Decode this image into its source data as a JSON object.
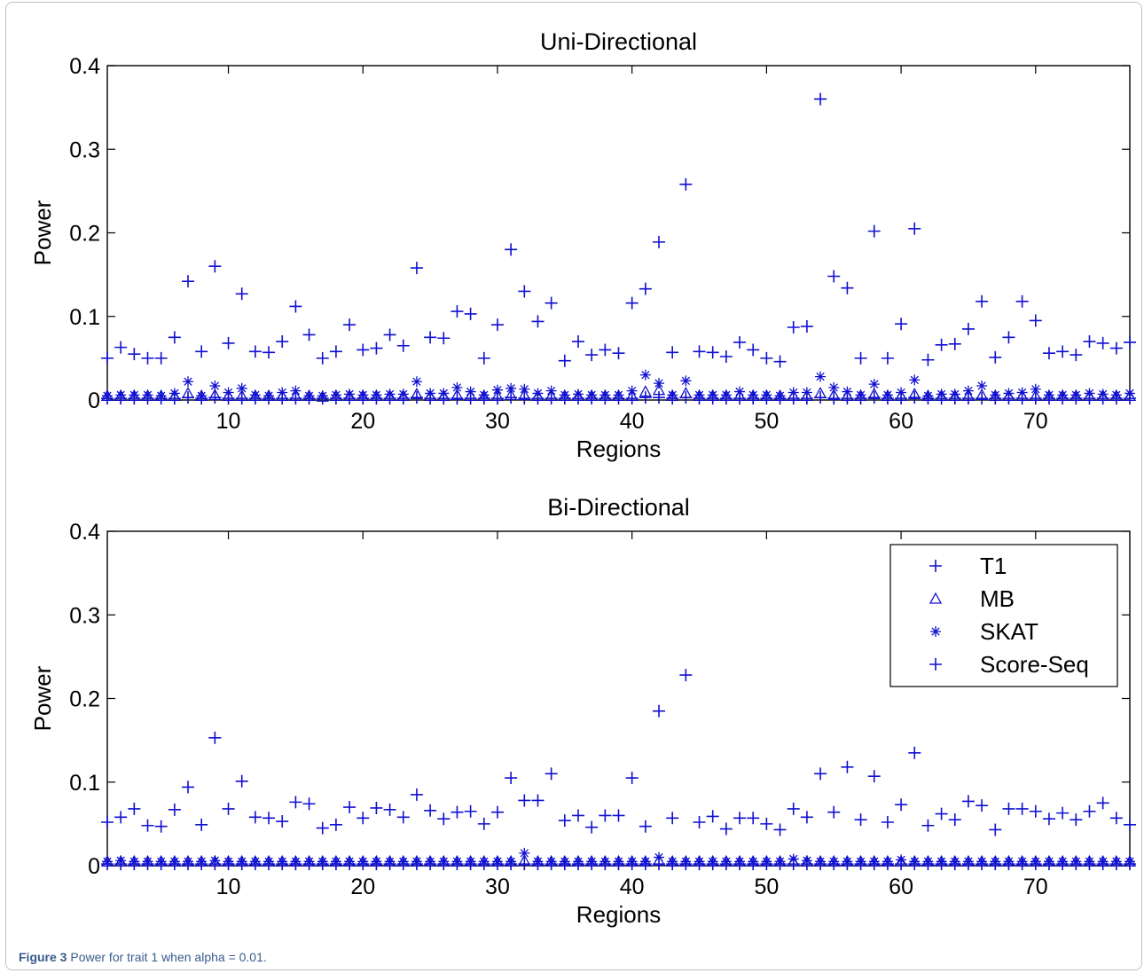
{
  "figure": {
    "caption_label": "Figure 3",
    "caption_text": "Power for trait 1 when alpha = 0.01."
  },
  "chart_data": [
    {
      "type": "scatter",
      "title": "Uni-Directional",
      "xlabel": "Regions",
      "ylabel": "Power",
      "xlim": [
        1,
        77
      ],
      "ylim": [
        0,
        0.4
      ],
      "xticks": [
        10,
        20,
        30,
        40,
        50,
        60,
        70
      ],
      "yticks": [
        0,
        0.1,
        0.2,
        0.3,
        0.4
      ],
      "ytick_labels": [
        "0",
        "0.1",
        "0.2",
        "0.3",
        "0.4"
      ],
      "legend": "none",
      "grid": false,
      "color": "#1010d0",
      "series": [
        {
          "marker": "plus",
          "values": [
            0.05,
            0.063,
            0.055,
            0.05,
            0.05,
            0.075,
            0.142,
            0.058,
            0.16,
            0.068,
            0.127,
            0.058,
            0.057,
            0.07,
            0.112,
            0.078,
            0.05,
            0.058,
            0.09,
            0.06,
            0.062,
            0.078,
            0.065,
            0.158,
            0.075,
            0.074,
            0.106,
            0.103,
            0.05,
            0.09,
            0.18,
            0.13,
            0.094,
            0.116,
            0.047,
            0.07,
            0.054,
            0.06,
            0.056,
            0.116,
            0.133,
            0.189,
            0.057,
            0.258,
            0.058,
            0.057,
            0.052,
            0.069,
            0.06,
            0.05,
            0.046,
            0.087,
            0.088,
            0.36,
            0.148,
            0.134,
            0.05,
            0.202,
            0.05,
            0.091,
            0.205,
            0.048,
            0.066,
            0.067,
            0.085,
            0.118,
            0.051,
            0.075,
            0.118,
            0.095,
            0.056,
            0.058,
            0.054,
            0.07,
            0.068,
            0.062,
            0.069
          ]
        },
        {
          "marker": "triangle",
          "values": [
            0.005,
            0.005,
            0.005,
            0.005,
            0.005,
            0.005,
            0.008,
            0.005,
            0.006,
            0.005,
            0.005,
            0.005,
            0.005,
            0.005,
            0.005,
            0.005,
            0.004,
            0.005,
            0.005,
            0.005,
            0.005,
            0.005,
            0.005,
            0.007,
            0.005,
            0.005,
            0.006,
            0.005,
            0.005,
            0.005,
            0.006,
            0.006,
            0.005,
            0.005,
            0.005,
            0.005,
            0.005,
            0.005,
            0.005,
            0.005,
            0.01,
            0.012,
            0.005,
            0.008,
            0.005,
            0.005,
            0.005,
            0.005,
            0.005,
            0.005,
            0.005,
            0.005,
            0.005,
            0.008,
            0.006,
            0.005,
            0.005,
            0.007,
            0.005,
            0.005,
            0.007,
            0.005,
            0.005,
            0.005,
            0.005,
            0.006,
            0.005,
            0.005,
            0.005,
            0.005,
            0.005,
            0.005,
            0.005,
            0.005,
            0.005,
            0.005,
            0.005
          ]
        },
        {
          "marker": "star",
          "values": [
            0.005,
            0.006,
            0.006,
            0.006,
            0.005,
            0.008,
            0.022,
            0.005,
            0.017,
            0.009,
            0.014,
            0.006,
            0.005,
            0.009,
            0.011,
            0.005,
            0.005,
            0.006,
            0.007,
            0.006,
            0.006,
            0.007,
            0.007,
            0.022,
            0.008,
            0.008,
            0.015,
            0.01,
            0.006,
            0.012,
            0.014,
            0.013,
            0.008,
            0.011,
            0.006,
            0.007,
            0.006,
            0.006,
            0.006,
            0.011,
            0.03,
            0.02,
            0.006,
            0.023,
            0.006,
            0.006,
            0.006,
            0.01,
            0.006,
            0.006,
            0.005,
            0.009,
            0.009,
            0.028,
            0.015,
            0.01,
            0.006,
            0.019,
            0.006,
            0.009,
            0.024,
            0.005,
            0.007,
            0.007,
            0.011,
            0.017,
            0.006,
            0.008,
            0.009,
            0.013,
            0.006,
            0.006,
            0.006,
            0.008,
            0.007,
            0.006,
            0.008
          ]
        },
        {
          "marker": "plus",
          "values": [
            0.002,
            0.002,
            0.002,
            0.002,
            0.002,
            0.002,
            0.003,
            0.002,
            0.003,
            0.002,
            0.002,
            0.002,
            0.002,
            0.002,
            0.002,
            0.002,
            0.002,
            0.002,
            0.002,
            0.002,
            0.002,
            0.002,
            0.002,
            0.003,
            0.002,
            0.002,
            0.002,
            0.002,
            0.002,
            0.002,
            0.003,
            0.002,
            0.002,
            0.002,
            0.002,
            0.002,
            0.002,
            0.002,
            0.002,
            0.002,
            0.003,
            0.003,
            0.002,
            0.003,
            0.002,
            0.002,
            0.002,
            0.002,
            0.002,
            0.002,
            0.002,
            0.002,
            0.002,
            0.003,
            0.002,
            0.002,
            0.002,
            0.003,
            0.002,
            0.002,
            0.003,
            0.002,
            0.002,
            0.002,
            0.002,
            0.002,
            0.002,
            0.002,
            0.002,
            0.002,
            0.002,
            0.002,
            0.002,
            0.002,
            0.002,
            0.002,
            0.002
          ]
        }
      ]
    },
    {
      "type": "scatter",
      "title": "Bi-Directional",
      "xlabel": "Regions",
      "ylabel": "Power",
      "xlim": [
        1,
        77
      ],
      "ylim": [
        0,
        0.4
      ],
      "xticks": [
        10,
        20,
        30,
        40,
        50,
        60,
        70
      ],
      "yticks": [
        0,
        0.1,
        0.2,
        0.3,
        0.4
      ],
      "ytick_labels": [
        "0",
        "0.1",
        "0.2",
        "0.3",
        "0.4"
      ],
      "legend": "top-right",
      "grid": false,
      "color": "#1010d0",
      "series": [
        {
          "name": "T1",
          "marker": "plus",
          "values": [
            0.052,
            0.058,
            0.068,
            0.048,
            0.047,
            0.067,
            0.094,
            0.049,
            0.153,
            0.068,
            0.101,
            0.058,
            0.057,
            0.053,
            0.076,
            0.074,
            0.045,
            0.049,
            0.07,
            0.057,
            0.069,
            0.067,
            0.058,
            0.085,
            0.066,
            0.056,
            0.064,
            0.065,
            0.05,
            0.064,
            0.105,
            0.078,
            0.078,
            0.11,
            0.054,
            0.06,
            0.046,
            0.06,
            0.06,
            0.105,
            0.047,
            0.185,
            0.057,
            0.228,
            0.052,
            0.059,
            0.044,
            0.057,
            0.057,
            0.05,
            0.043,
            0.068,
            0.058,
            0.11,
            0.064,
            0.118,
            0.055,
            0.107,
            0.052,
            0.073,
            0.135,
            0.048,
            0.062,
            0.055,
            0.077,
            0.072,
            0.043,
            0.068,
            0.068,
            0.065,
            0.056,
            0.063,
            0.055,
            0.065,
            0.075,
            0.057,
            0.049
          ]
        },
        {
          "name": "MB",
          "marker": "triangle",
          "values": [
            0.005,
            0.005,
            0.005,
            0.005,
            0.005,
            0.005,
            0.005,
            0.005,
            0.005,
            0.005,
            0.005,
            0.005,
            0.005,
            0.005,
            0.005,
            0.005,
            0.005,
            0.005,
            0.005,
            0.005,
            0.005,
            0.005,
            0.005,
            0.005,
            0.005,
            0.005,
            0.005,
            0.005,
            0.005,
            0.005,
            0.005,
            0.006,
            0.005,
            0.005,
            0.005,
            0.005,
            0.005,
            0.005,
            0.005,
            0.005,
            0.005,
            0.006,
            0.005,
            0.005,
            0.005,
            0.005,
            0.005,
            0.005,
            0.005,
            0.005,
            0.005,
            0.005,
            0.005,
            0.005,
            0.005,
            0.005,
            0.005,
            0.005,
            0.005,
            0.005,
            0.005,
            0.005,
            0.005,
            0.005,
            0.005,
            0.005,
            0.005,
            0.005,
            0.005,
            0.005,
            0.005,
            0.005,
            0.005,
            0.005,
            0.005,
            0.005,
            0.005
          ]
        },
        {
          "name": "SKAT",
          "marker": "star",
          "values": [
            0.005,
            0.006,
            0.005,
            0.005,
            0.005,
            0.005,
            0.005,
            0.005,
            0.006,
            0.005,
            0.005,
            0.005,
            0.005,
            0.005,
            0.005,
            0.005,
            0.005,
            0.005,
            0.005,
            0.005,
            0.005,
            0.005,
            0.005,
            0.005,
            0.005,
            0.005,
            0.005,
            0.005,
            0.005,
            0.005,
            0.005,
            0.015,
            0.005,
            0.005,
            0.005,
            0.005,
            0.005,
            0.005,
            0.005,
            0.005,
            0.005,
            0.01,
            0.005,
            0.005,
            0.005,
            0.005,
            0.005,
            0.005,
            0.005,
            0.005,
            0.005,
            0.008,
            0.006,
            0.005,
            0.005,
            0.005,
            0.005,
            0.005,
            0.005,
            0.007,
            0.005,
            0.005,
            0.005,
            0.005,
            0.005,
            0.005,
            0.005,
            0.005,
            0.005,
            0.005,
            0.005,
            0.005,
            0.005,
            0.005,
            0.005,
            0.005,
            0.005
          ]
        },
        {
          "name": "Score-Seq",
          "marker": "plus",
          "values": [
            0.002,
            0.002,
            0.002,
            0.002,
            0.002,
            0.002,
            0.002,
            0.002,
            0.002,
            0.002,
            0.002,
            0.002,
            0.002,
            0.002,
            0.002,
            0.002,
            0.002,
            0.002,
            0.002,
            0.002,
            0.002,
            0.002,
            0.002,
            0.002,
            0.002,
            0.002,
            0.002,
            0.002,
            0.002,
            0.002,
            0.002,
            0.002,
            0.002,
            0.002,
            0.002,
            0.002,
            0.002,
            0.002,
            0.002,
            0.002,
            0.002,
            0.002,
            0.002,
            0.002,
            0.002,
            0.002,
            0.002,
            0.002,
            0.002,
            0.002,
            0.002,
            0.002,
            0.002,
            0.002,
            0.002,
            0.002,
            0.002,
            0.002,
            0.002,
            0.002,
            0.002,
            0.002,
            0.002,
            0.002,
            0.002,
            0.002,
            0.002,
            0.002,
            0.002,
            0.002,
            0.002,
            0.002,
            0.002,
            0.002,
            0.002,
            0.002,
            0.002
          ]
        }
      ]
    }
  ]
}
